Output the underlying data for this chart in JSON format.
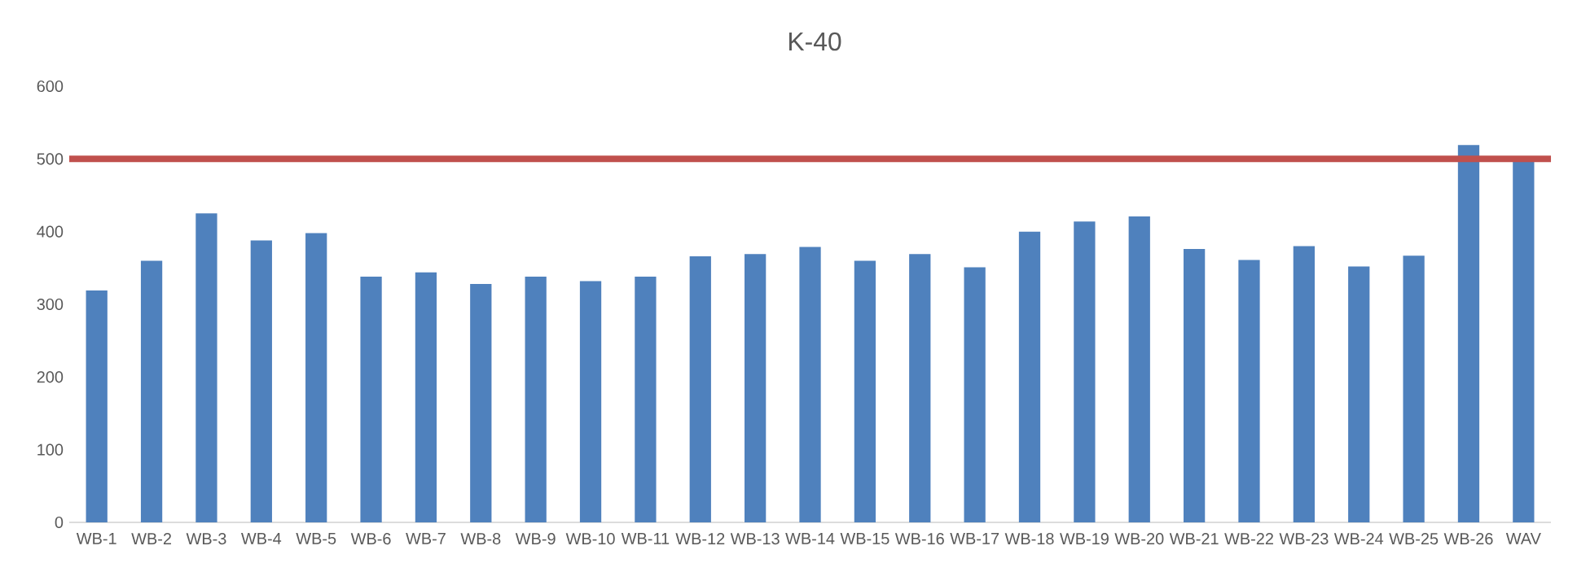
{
  "chart_data": {
    "type": "bar",
    "title": "K-40",
    "categories": [
      "WB-1",
      "WB-2",
      "WB-3",
      "WB-4",
      "WB-5",
      "WB-6",
      "WB-7",
      "WB-8",
      "WB-9",
      "WB-10",
      "WB-11",
      "WB-12",
      "WB-13",
      "WB-14",
      "WB-15",
      "WB-16",
      "WB-17",
      "WB-18",
      "WB-19",
      "WB-20",
      "WB-21",
      "WB-22",
      "WB-23",
      "WB-24",
      "WB-25",
      "WB-26",
      "WAV"
    ],
    "values": [
      319,
      360,
      425,
      388,
      398,
      338,
      344,
      328,
      338,
      332,
      338,
      366,
      369,
      379,
      360,
      369,
      351,
      400,
      414,
      421,
      376,
      361,
      380,
      352,
      367,
      519,
      497
    ],
    "color": "#4f81bd",
    "ylim": [
      0,
      600
    ],
    "yticks": [
      0,
      100,
      200,
      300,
      400,
      500,
      600
    ],
    "grid": false,
    "ref_lines": [
      {
        "axis": "y",
        "value": 500,
        "color": "#c0504d",
        "line_style": "solid"
      }
    ]
  }
}
